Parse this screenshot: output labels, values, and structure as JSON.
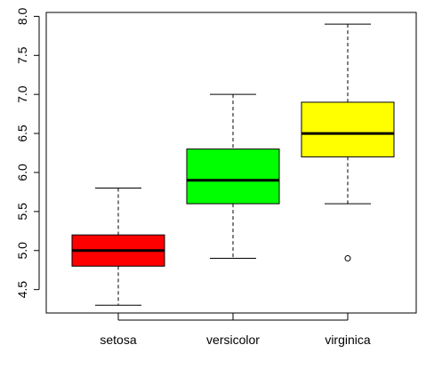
{
  "chart_data": {
    "type": "box",
    "title": "",
    "xlabel": "",
    "ylabel": "",
    "ylim": [
      4.2,
      8.05
    ],
    "yticks": [
      {
        "value": 4.5,
        "label": "4.5"
      },
      {
        "value": 5.0,
        "label": "5.0"
      },
      {
        "value": 5.5,
        "label": "5.5"
      },
      {
        "value": 6.0,
        "label": "6.0"
      },
      {
        "value": 6.5,
        "label": "6.5"
      },
      {
        "value": 7.0,
        "label": "7.0"
      },
      {
        "value": 7.5,
        "label": "7.5"
      },
      {
        "value": 8.0,
        "label": "8.0"
      }
    ],
    "categories": [
      "setosa",
      "versicolor",
      "virginica"
    ],
    "boxes": [
      {
        "category": "setosa",
        "color": "#ff0000",
        "whisker_low": 4.3,
        "q1": 4.8,
        "median": 5.0,
        "q3": 5.2,
        "whisker_high": 5.8,
        "outliers": []
      },
      {
        "category": "versicolor",
        "color": "#00ff00",
        "whisker_low": 4.9,
        "q1": 5.6,
        "median": 5.9,
        "q3": 6.3,
        "whisker_high": 7.0,
        "outliers": []
      },
      {
        "category": "virginica",
        "color": "#ffff00",
        "whisker_low": 5.6,
        "q1": 6.2,
        "median": 6.5,
        "q3": 6.9,
        "whisker_high": 7.9,
        "outliers": [
          4.9
        ]
      }
    ],
    "grid": false,
    "legend": "none"
  }
}
